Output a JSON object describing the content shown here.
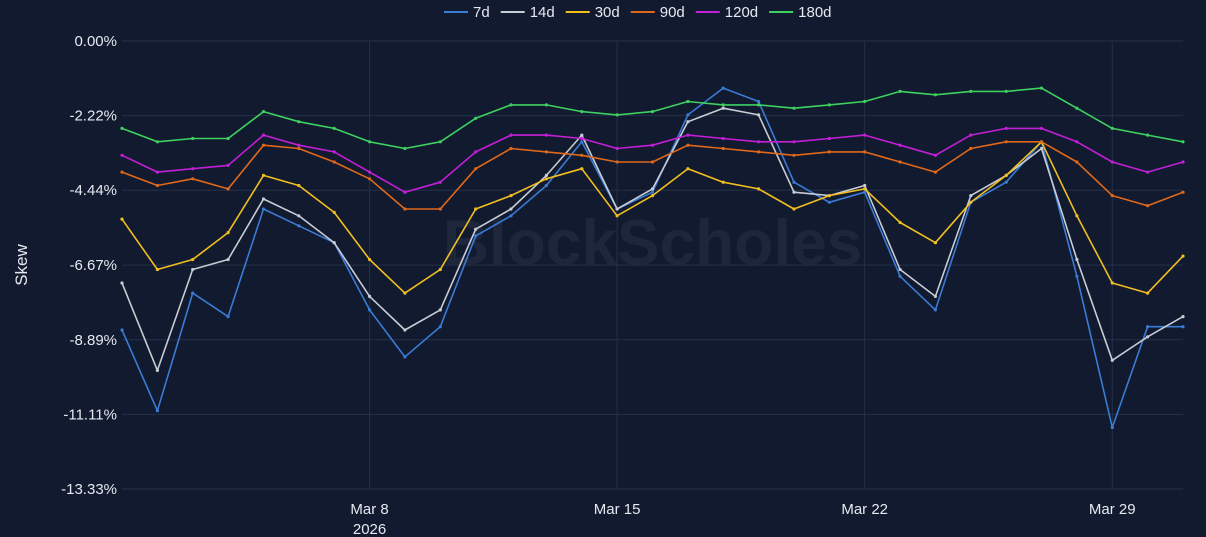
{
  "chart_data": {
    "type": "line",
    "title": "",
    "xlabel": "",
    "ylabel": "Skew",
    "watermark": "BlockScholes",
    "legend_position": "top-center",
    "grid": true,
    "ylim": [
      -13.33,
      0.0
    ],
    "yticks": [
      0.0,
      -2.22,
      -4.44,
      -6.67,
      -8.89,
      -11.11,
      -13.33
    ],
    "ytick_labels": [
      "0.00%",
      "-2.22%",
      "-4.44%",
      "-6.67%",
      "-8.89%",
      "-11.11%",
      "-13.33%"
    ],
    "xlim": [
      "2026-03-01",
      "2026-03-31"
    ],
    "xticks": [
      "2026-03-08",
      "2026-03-15",
      "2026-03-22",
      "2026-03-29"
    ],
    "xtick_labels": [
      "Mar 8",
      "Mar 15",
      "Mar 22",
      "Mar 29"
    ],
    "xtick_year_label": "2026",
    "x": [
      "2026-03-01",
      "2026-03-02",
      "2026-03-03",
      "2026-03-04",
      "2026-03-05",
      "2026-03-06",
      "2026-03-07",
      "2026-03-08",
      "2026-03-09",
      "2026-03-10",
      "2026-03-11",
      "2026-03-12",
      "2026-03-13",
      "2026-03-14",
      "2026-03-15",
      "2026-03-16",
      "2026-03-17",
      "2026-03-18",
      "2026-03-19",
      "2026-03-20",
      "2026-03-21",
      "2026-03-22",
      "2026-03-23",
      "2026-03-24",
      "2026-03-25",
      "2026-03-26",
      "2026-03-27",
      "2026-03-28",
      "2026-03-29",
      "2026-03-30",
      "2026-03-31"
    ],
    "series": [
      {
        "name": "7d",
        "color": "#3a7bd5",
        "values": [
          -8.6,
          -11.0,
          -7.5,
          -8.2,
          -5.0,
          -5.5,
          -6.0,
          -8.0,
          -9.4,
          -8.5,
          -5.8,
          -5.2,
          -4.3,
          -3.0,
          -5.0,
          -4.5,
          -2.2,
          -1.4,
          -1.8,
          -4.2,
          -4.8,
          -4.5,
          -7.0,
          -8.0,
          -4.8,
          -4.2,
          -3.0,
          -7.0,
          -11.5,
          -8.5,
          -8.5
        ]
      },
      {
        "name": "14d",
        "color": "#c8ccd4",
        "values": [
          -7.2,
          -9.8,
          -6.8,
          -6.5,
          -4.7,
          -5.2,
          -6.0,
          -7.6,
          -8.6,
          -8.0,
          -5.6,
          -5.0,
          -4.0,
          -2.8,
          -5.0,
          -4.4,
          -2.4,
          -2.0,
          -2.2,
          -4.5,
          -4.6,
          -4.3,
          -6.8,
          -7.6,
          -4.6,
          -4.0,
          -3.2,
          -6.5,
          -9.5,
          -8.8,
          -8.2
        ]
      },
      {
        "name": "30d",
        "color": "#f2bf1f",
        "values": [
          -5.3,
          -6.8,
          -6.5,
          -5.7,
          -4.0,
          -4.3,
          -5.1,
          -6.5,
          -7.5,
          -6.8,
          -5.0,
          -4.6,
          -4.1,
          -3.8,
          -5.2,
          -4.6,
          -3.8,
          -4.2,
          -4.4,
          -5.0,
          -4.6,
          -4.4,
          -5.4,
          -6.0,
          -4.8,
          -4.0,
          -3.0,
          -5.2,
          -7.2,
          -7.5,
          -6.4
        ]
      },
      {
        "name": "90d",
        "color": "#e0681a",
        "values": [
          -3.9,
          -4.3,
          -4.1,
          -4.4,
          -3.1,
          -3.2,
          -3.6,
          -4.1,
          -5.0,
          -5.0,
          -3.8,
          -3.2,
          -3.3,
          -3.4,
          -3.6,
          -3.6,
          -3.1,
          -3.2,
          -3.3,
          -3.4,
          -3.3,
          -3.3,
          -3.6,
          -3.9,
          -3.2,
          -3.0,
          -3.0,
          -3.6,
          -4.6,
          -4.9,
          -4.5
        ]
      },
      {
        "name": "120d",
        "color": "#c21fd6",
        "values": [
          -3.4,
          -3.9,
          -3.8,
          -3.7,
          -2.8,
          -3.1,
          -3.3,
          -3.9,
          -4.5,
          -4.2,
          -3.3,
          -2.8,
          -2.8,
          -2.9,
          -3.2,
          -3.1,
          -2.8,
          -2.9,
          -3.0,
          -3.0,
          -2.9,
          -2.8,
          -3.1,
          -3.4,
          -2.8,
          -2.6,
          -2.6,
          -3.0,
          -3.6,
          -3.9,
          -3.6
        ]
      },
      {
        "name": "180d",
        "color": "#3ed160",
        "values": [
          -2.6,
          -3.0,
          -2.9,
          -2.9,
          -2.1,
          -2.4,
          -2.6,
          -3.0,
          -3.2,
          -3.0,
          -2.3,
          -1.9,
          -1.9,
          -2.1,
          -2.2,
          -2.1,
          -1.8,
          -1.9,
          -1.9,
          -2.0,
          -1.9,
          -1.8,
          -1.5,
          -1.6,
          -1.5,
          -1.5,
          -1.4,
          -2.0,
          -2.6,
          -2.8,
          -3.0
        ]
      }
    ]
  }
}
